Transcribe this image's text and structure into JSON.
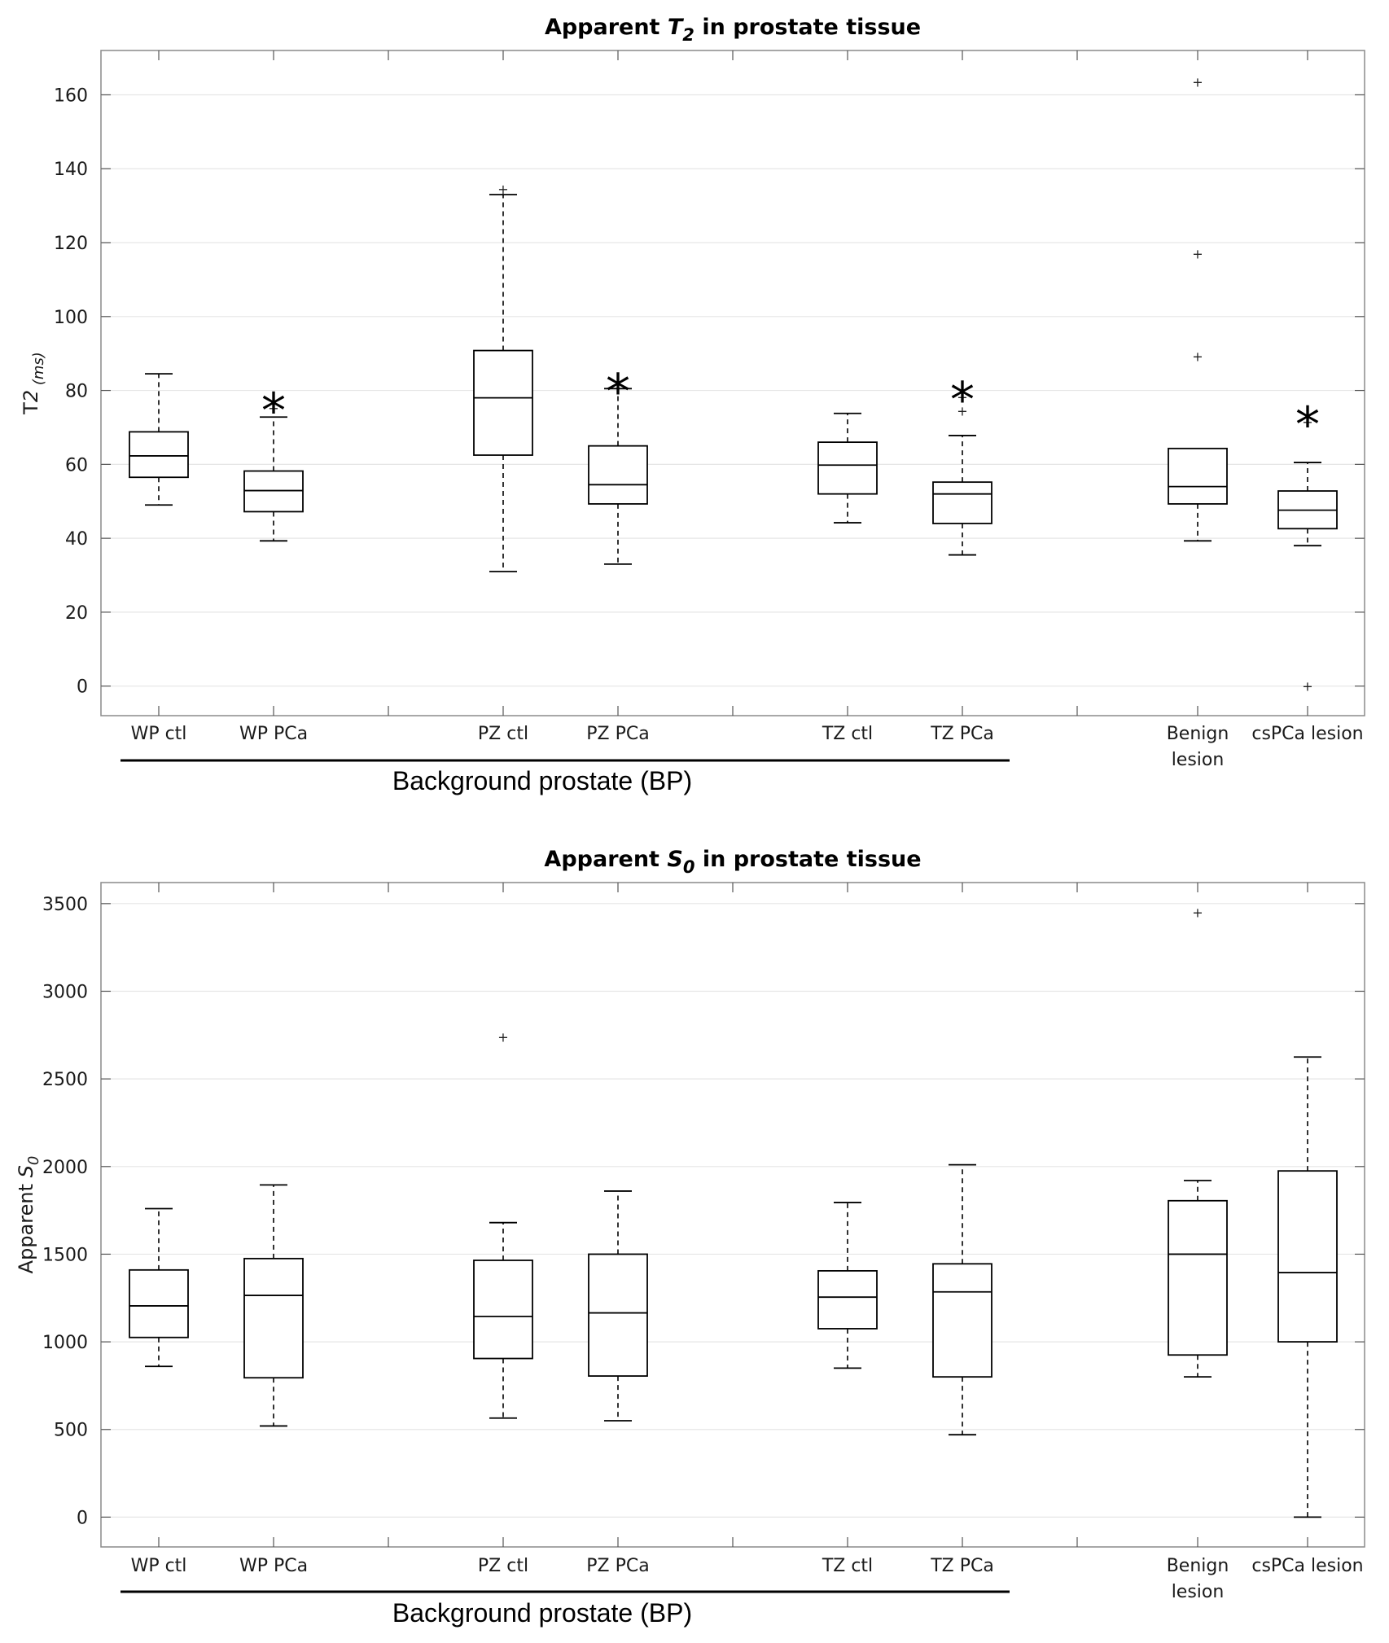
{
  "chart_data": [
    {
      "type": "boxplot",
      "title_parts": [
        "Apparent ",
        "T",
        "2",
        " in prostate tissue"
      ],
      "ylabel_parts": [
        "T",
        "2",
        " (ms)"
      ],
      "ylim": [
        -8,
        172
      ],
      "yticks": [
        0,
        20,
        40,
        60,
        80,
        100,
        120,
        140,
        160
      ],
      "grid": true,
      "group_bracket": {
        "label": "Background prostate (BP)",
        "spans": "WP ctl to TZ PCa"
      },
      "categories": [
        {
          "label": [
            "WP ctl"
          ],
          "min": 49,
          "q1": 56.5,
          "median": 62.3,
          "q3": 68.8,
          "max": 84.5,
          "outliers": [],
          "significant": false
        },
        {
          "label": [
            "WP PCa"
          ],
          "min": 39.3,
          "q1": 47.2,
          "median": 52.9,
          "q3": 58.2,
          "max": 72.8,
          "outliers": [
            75.3
          ],
          "significant": true
        },
        {
          "label": [
            "PZ ctl"
          ],
          "min": 31,
          "q1": 62.5,
          "median": 78,
          "q3": 90.8,
          "max": 133,
          "outliers": [
            134.5
          ],
          "significant": false
        },
        {
          "label": [
            "PZ PCa"
          ],
          "min": 33,
          "q1": 49.3,
          "median": 54.5,
          "q3": 65,
          "max": 80.5,
          "outliers": [],
          "significant": true
        },
        {
          "label": [
            "TZ ctl"
          ],
          "min": 44.2,
          "q1": 52,
          "median": 59.8,
          "q3": 66,
          "max": 73.8,
          "outliers": [],
          "significant": false
        },
        {
          "label": [
            "TZ PCa"
          ],
          "min": 35.5,
          "q1": 44,
          "median": 52,
          "q3": 55.2,
          "max": 67.8,
          "outliers": [
            74.5,
            78.3
          ],
          "significant": true
        },
        {
          "label": [
            "Benign",
            "lesion"
          ],
          "min": 39.3,
          "q1": 49.3,
          "median": 54,
          "q3": 64.3,
          "max": 64.3,
          "outliers": [
            89.3,
            117,
            163.5
          ],
          "significant": false
        },
        {
          "label": [
            "csPCa lesion"
          ],
          "min": 38,
          "q1": 42.6,
          "median": 47.6,
          "q3": 52.8,
          "max": 60.5,
          "outliers": [
            71.5,
            0
          ],
          "significant": true
        }
      ],
      "significance_marker": "*"
    },
    {
      "type": "boxplot",
      "title_parts": [
        "Apparent ",
        "S",
        "0",
        " in prostate tissue"
      ],
      "ylabel_parts": [
        "Apparent ",
        "S",
        "0",
        ""
      ],
      "ylim": [
        -170,
        3620
      ],
      "yticks": [
        0,
        500,
        1000,
        1500,
        2000,
        2500,
        3000,
        3500
      ],
      "grid": true,
      "group_bracket": {
        "label": "Background prostate (BP)",
        "spans": "WP ctl to TZ PCa"
      },
      "categories": [
        {
          "label": [
            "WP ctl"
          ],
          "min": 860,
          "q1": 1025,
          "median": 1205,
          "q3": 1410,
          "max": 1760,
          "outliers": []
        },
        {
          "label": [
            "WP PCa"
          ],
          "min": 520,
          "q1": 795,
          "median": 1265,
          "q3": 1475,
          "max": 1895,
          "outliers": []
        },
        {
          "label": [
            "PZ ctl"
          ],
          "min": 565,
          "q1": 905,
          "median": 1145,
          "q3": 1465,
          "max": 1680,
          "outliers": [
            2740
          ]
        },
        {
          "label": [
            "PZ PCa"
          ],
          "min": 550,
          "q1": 805,
          "median": 1165,
          "q3": 1500,
          "max": 1860,
          "outliers": []
        },
        {
          "label": [
            "TZ ctl"
          ],
          "min": 850,
          "q1": 1075,
          "median": 1255,
          "q3": 1405,
          "max": 1795,
          "outliers": []
        },
        {
          "label": [
            "TZ PCa"
          ],
          "min": 470,
          "q1": 800,
          "median": 1285,
          "q3": 1445,
          "max": 2010,
          "outliers": []
        },
        {
          "label": [
            "Benign",
            "lesion"
          ],
          "min": 800,
          "q1": 925,
          "median": 1500,
          "q3": 1805,
          "max": 1920,
          "outliers": [
            3450
          ]
        },
        {
          "label": [
            "csPCa lesion"
          ],
          "min": 0,
          "q1": 1000,
          "median": 1395,
          "q3": 1975,
          "max": 2625,
          "outliers": []
        }
      ]
    }
  ]
}
